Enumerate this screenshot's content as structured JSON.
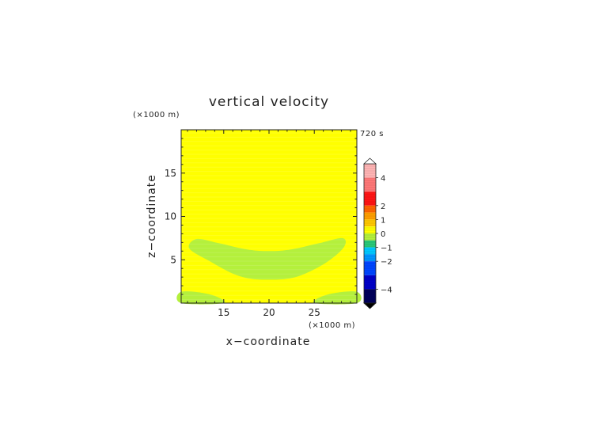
{
  "chart_data": {
    "type": "heatmap",
    "title": "vertical velocity",
    "time_label": "720 s",
    "xlabel": "x−coordinate",
    "ylabel": "z−coordinate",
    "x_unit": "(×1000 m)",
    "y_unit": "(×1000 m)",
    "xlim": [
      10.3,
      29.7
    ],
    "ylim": [
      0,
      20
    ],
    "x_ticks": [
      15,
      20,
      25
    ],
    "y_ticks": [
      5,
      10,
      15
    ],
    "colors": {
      "field_background": "#ffff00",
      "negative_region": "#b4f03c"
    },
    "negative_regions": [
      {
        "name": "upper band",
        "points": [
          [
            11.2,
            6.3
          ],
          [
            12.0,
            7.4
          ],
          [
            14.5,
            6.9
          ],
          [
            17.5,
            6.2
          ],
          [
            20.0,
            6.0
          ],
          [
            22.5,
            6.2
          ],
          [
            25.5,
            6.9
          ],
          [
            28.1,
            7.5
          ],
          [
            28.3,
            6.5
          ],
          [
            26.5,
            4.8
          ],
          [
            24.0,
            3.4
          ],
          [
            22.0,
            2.8
          ],
          [
            20.0,
            2.7
          ],
          [
            18.0,
            2.8
          ],
          [
            16.0,
            3.4
          ],
          [
            13.5,
            4.8
          ]
        ]
      },
      {
        "name": "lower left",
        "points": [
          [
            10.3,
            0
          ],
          [
            15.0,
            0
          ],
          [
            13.5,
            1.0
          ],
          [
            10.3,
            1.3
          ]
        ]
      },
      {
        "name": "lower right",
        "points": [
          [
            25.0,
            0
          ],
          [
            29.7,
            0
          ],
          [
            29.7,
            1.3
          ],
          [
            26.5,
            1.0
          ]
        ]
      }
    ],
    "colorbar": {
      "min": -5,
      "max": 5,
      "labels": [
        "4",
        "2",
        "1",
        "0",
        "−1",
        "−2",
        "−4"
      ],
      "label_values": [
        4,
        2,
        1,
        0,
        -1,
        -2,
        -4
      ],
      "segments": [
        {
          "from": 4.0,
          "to": 5.0,
          "color": "#ffb4b4"
        },
        {
          "from": 3.0,
          "to": 4.0,
          "color": "#ff7878"
        },
        {
          "from": 2.0,
          "to": 3.0,
          "color": "#ff1414"
        },
        {
          "from": 1.5,
          "to": 2.0,
          "color": "#ff6400"
        },
        {
          "from": 1.0,
          "to": 1.5,
          "color": "#ffa000"
        },
        {
          "from": 0.5,
          "to": 1.0,
          "color": "#ffc800"
        },
        {
          "from": 0.0,
          "to": 0.5,
          "color": "#ffff00"
        },
        {
          "from": -0.5,
          "to": 0.0,
          "color": "#b4f03c"
        },
        {
          "from": -1.0,
          "to": -0.5,
          "color": "#28c878"
        },
        {
          "from": -1.5,
          "to": -1.0,
          "color": "#00c8ff"
        },
        {
          "from": -2.0,
          "to": -1.5,
          "color": "#0096ff"
        },
        {
          "from": -3.0,
          "to": -2.0,
          "color": "#0046ff"
        },
        {
          "from": -4.0,
          "to": -3.0,
          "color": "#0000c8"
        },
        {
          "from": -5.0,
          "to": -4.0,
          "color": "#00005a"
        }
      ],
      "over_color": "#ffffff",
      "under_color": "#000000"
    }
  }
}
